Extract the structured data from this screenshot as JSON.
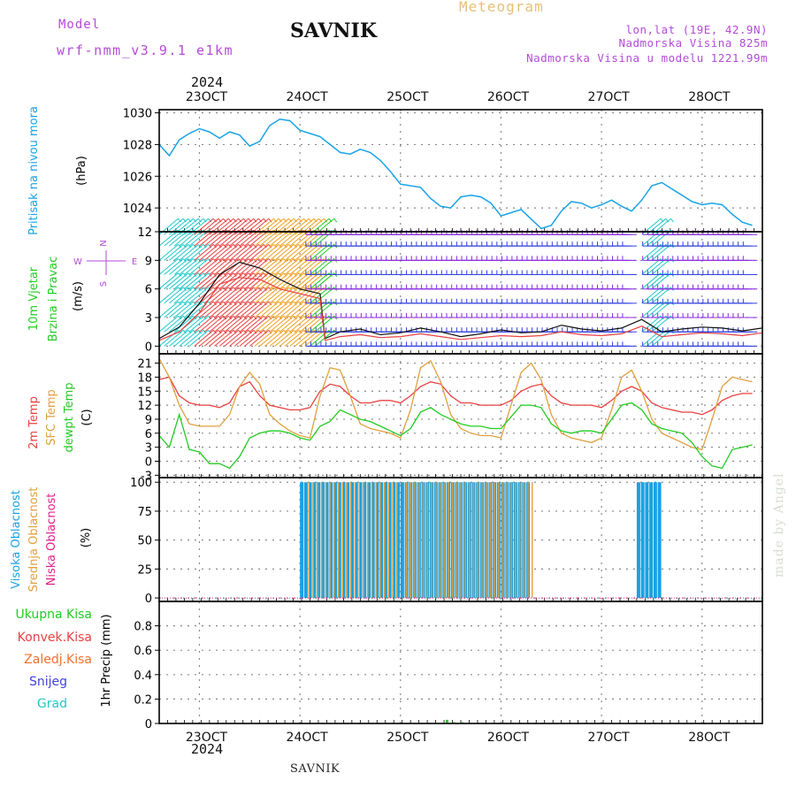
{
  "header": {
    "model_label": "Model",
    "model_name": "wrf-nmm_v3.9.1 e1km",
    "station": "SAVNIK",
    "meteogram_label": "Meteogram",
    "lonlat": "lon,lat (19E, 42.9N)",
    "elevation": "Nadmorska Visina 825m",
    "model_elevation": "Nadmorska Visina u modelu 1221.99m",
    "year": "2024",
    "footer_station": "SAVNIK",
    "credit": "made by Angel"
  },
  "colors": {
    "pressure": "#1aa3e6",
    "temp2m": "#e84040",
    "sfc_temp": "#e0a040",
    "dewpoint": "#22cc22",
    "high_cloud": "#1ba1e2",
    "mid_cloud": "#e0a040",
    "low_cloud": "#e0208a",
    "wind_purple": "#8a2be2",
    "wind_blue": "#2f3fe0",
    "wind_cyan": "#20c8c8",
    "wind_green": "#22cc22",
    "wind_orange": "#f0a020",
    "wind_red": "#e84040",
    "legend_magenta": "#b44bd8",
    "grid": "#8a8a8a"
  },
  "chart_data": [
    {
      "type": "line",
      "title": "",
      "ylabel_left": "Pritisak na nivou mora",
      "ylabel_unit": "(hPa)",
      "xlabel": "",
      "x_ticks": [
        "23OCT",
        "24OCT",
        "25OCT",
        "26OCT",
        "27OCT",
        "28OCT"
      ],
      "x_range_days": [
        22.6,
        28.6
      ],
      "ylim": [
        1022.5,
        1030.2
      ],
      "y_ticks": [
        1024,
        1026,
        1028,
        1030
      ],
      "grid": true,
      "series": [
        {
          "key": "pressure",
          "x": [
            22.6,
            22.7,
            22.8,
            22.9,
            23.0,
            23.1,
            23.2,
            23.3,
            23.4,
            23.5,
            23.6,
            23.7,
            23.8,
            23.9,
            24.0,
            24.1,
            24.2,
            24.3,
            24.4,
            24.5,
            24.6,
            24.7,
            24.8,
            24.9,
            25.0,
            25.1,
            25.2,
            25.3,
            25.4,
            25.5,
            25.6,
            25.7,
            25.8,
            25.9,
            26.0,
            26.1,
            26.2,
            26.3,
            26.4,
            26.5,
            26.6,
            26.7,
            26.8,
            26.9,
            27.0,
            27.1,
            27.2,
            27.3,
            27.4,
            27.5,
            27.6,
            27.7,
            27.8,
            27.9,
            28.0,
            28.1,
            28.2,
            28.3,
            28.4,
            28.5
          ],
          "values": [
            1028.0,
            1027.3,
            1028.3,
            1028.7,
            1029.0,
            1028.8,
            1028.4,
            1028.8,
            1028.6,
            1027.9,
            1028.2,
            1029.2,
            1029.6,
            1029.5,
            1028.9,
            1028.7,
            1028.5,
            1028.0,
            1027.5,
            1027.4,
            1027.7,
            1027.5,
            1027.0,
            1026.3,
            1025.5,
            1025.4,
            1025.3,
            1024.6,
            1024.1,
            1024.0,
            1024.7,
            1024.8,
            1024.7,
            1024.3,
            1023.5,
            1023.7,
            1023.9,
            1023.3,
            1022.7,
            1022.9,
            1023.8,
            1024.4,
            1024.3,
            1024.0,
            1024.2,
            1024.5,
            1024.1,
            1023.8,
            1024.5,
            1025.4,
            1025.6,
            1025.2,
            1024.8,
            1024.4,
            1024.2,
            1024.3,
            1024.2,
            1023.6,
            1023.1,
            1022.9
          ]
        }
      ]
    },
    {
      "type": "line",
      "title": "",
      "ylabel_left": "10m Vjetar Brzina i Pravac",
      "ylabel_unit": "(m/s)",
      "compass_labels": [
        "N",
        "E",
        "S",
        "W"
      ],
      "x_range_days": [
        22.6,
        28.6
      ],
      "ylim": [
        -0.8,
        12
      ],
      "y_ticks": [
        0,
        3,
        6,
        9,
        12
      ],
      "grid": true,
      "wind_barb_rows": [
        0,
        1.5,
        3,
        4.5,
        6,
        7.5,
        9,
        10.5,
        11.7
      ],
      "wind_regimes": [
        {
          "from": 22.6,
          "to": 22.95,
          "color_key": "wind_cyan",
          "direction": "SW"
        },
        {
          "from": 22.95,
          "to": 23.55,
          "color_key": "wind_red",
          "direction": "SW"
        },
        {
          "from": 23.55,
          "to": 24.1,
          "color_key": "wind_orange",
          "direction": "SW"
        },
        {
          "from": 24.1,
          "to": 24.2,
          "color_key": "wind_green",
          "direction": "SW"
        },
        {
          "from": 24.2,
          "to": 27.4,
          "color_key": "wind_purple",
          "direction": "W"
        },
        {
          "from": 27.4,
          "to": 27.55,
          "color_key": "wind_cyan",
          "direction": "SW"
        },
        {
          "from": 27.55,
          "to": 28.6,
          "color_key": "wind_purple",
          "direction": "W"
        }
      ],
      "series": [
        {
          "key": "wind_speed_max",
          "x": [
            22.6,
            22.8,
            23.0,
            23.2,
            23.4,
            23.6,
            23.8,
            24.0,
            24.2,
            24.25,
            24.4,
            24.6,
            24.8,
            25.0,
            25.2,
            25.4,
            25.6,
            25.8,
            26.0,
            26.2,
            26.4,
            26.6,
            26.8,
            27.0,
            27.2,
            27.4,
            27.6,
            27.8,
            28.0,
            28.2,
            28.4,
            28.6
          ],
          "values": [
            0.8,
            2.0,
            4.5,
            7.5,
            8.8,
            8.2,
            7.0,
            6.0,
            5.5,
            0.8,
            1.5,
            1.8,
            1.2,
            1.4,
            1.9,
            1.5,
            1.0,
            1.3,
            1.7,
            1.4,
            1.5,
            2.2,
            1.8,
            1.6,
            1.9,
            2.8,
            1.5,
            1.8,
            2.0,
            1.9,
            1.6,
            1.9
          ]
        },
        {
          "key": "wind_speed_mean",
          "x": [
            22.6,
            22.8,
            23.0,
            23.2,
            23.4,
            23.6,
            23.8,
            24.0,
            24.2,
            24.25,
            24.4,
            24.6,
            24.8,
            25.0,
            25.2,
            25.4,
            25.6,
            25.8,
            26.0,
            26.2,
            26.4,
            26.6,
            26.8,
            27.0,
            27.2,
            27.4,
            27.6,
            27.8,
            28.0,
            28.2,
            28.4,
            28.6
          ],
          "values": [
            0.6,
            1.5,
            3.5,
            6.5,
            7.2,
            7.0,
            6.0,
            5.5,
            5.0,
            0.6,
            1.0,
            1.2,
            0.9,
            1.0,
            1.3,
            1.0,
            0.7,
            0.9,
            1.1,
            1.0,
            1.1,
            1.5,
            1.2,
            1.1,
            1.3,
            2.1,
            1.0,
            1.2,
            1.4,
            1.3,
            1.1,
            1.4
          ]
        }
      ]
    },
    {
      "type": "line",
      "title": "",
      "ylabel_left": [
        "2m Temp",
        "SFC Temp",
        "dewpt Temp"
      ],
      "ylabel_unit": "(C)",
      "x_range_days": [
        22.6,
        28.6
      ],
      "ylim": [
        -3.5,
        23
      ],
      "y_ticks": [
        -3,
        0,
        3,
        6,
        9,
        12,
        15,
        18,
        21
      ],
      "grid": true,
      "series": [
        {
          "key": "temp2m",
          "x": [
            22.6,
            22.7,
            22.8,
            22.9,
            23.0,
            23.1,
            23.2,
            23.3,
            23.4,
            23.5,
            23.6,
            23.7,
            23.8,
            23.9,
            24.0,
            24.1,
            24.2,
            24.3,
            24.4,
            24.5,
            24.6,
            24.7,
            24.8,
            24.9,
            25.0,
            25.1,
            25.2,
            25.3,
            25.4,
            25.5,
            25.6,
            25.7,
            25.8,
            25.9,
            26.0,
            26.1,
            26.2,
            26.3,
            26.4,
            26.5,
            26.6,
            26.7,
            26.8,
            26.9,
            27.0,
            27.1,
            27.2,
            27.3,
            27.4,
            27.5,
            27.6,
            27.7,
            27.8,
            27.9,
            28.0,
            28.1,
            28.2,
            28.3,
            28.4,
            28.5
          ],
          "values": [
            17.5,
            18.0,
            14.0,
            12.5,
            12.0,
            12.0,
            11.5,
            12.5,
            16.0,
            17.0,
            14.0,
            12.0,
            11.5,
            11.0,
            11.0,
            11.5,
            15.0,
            16.5,
            16.0,
            14.0,
            12.5,
            12.5,
            13.0,
            13.0,
            12.5,
            14.0,
            16.0,
            17.0,
            16.5,
            14.0,
            12.5,
            12.5,
            12.0,
            12.0,
            12.0,
            13.0,
            15.0,
            16.0,
            16.5,
            14.0,
            12.5,
            12.0,
            12.0,
            12.0,
            11.5,
            13.0,
            15.0,
            16.0,
            15.0,
            12.5,
            11.5,
            11.0,
            10.5,
            10.5,
            10.0,
            11.0,
            13.0,
            14.0,
            14.5,
            14.5
          ]
        },
        {
          "key": "sfc_temp",
          "x": [
            22.6,
            22.7,
            22.8,
            22.9,
            23.0,
            23.1,
            23.2,
            23.3,
            23.4,
            23.5,
            23.6,
            23.7,
            23.8,
            23.9,
            24.0,
            24.1,
            24.2,
            24.3,
            24.4,
            24.5,
            24.6,
            24.7,
            24.8,
            24.9,
            25.0,
            25.1,
            25.2,
            25.3,
            25.4,
            25.5,
            25.6,
            25.7,
            25.8,
            25.9,
            26.0,
            26.1,
            26.2,
            26.3,
            26.4,
            26.5,
            26.6,
            26.7,
            26.8,
            26.9,
            27.0,
            27.1,
            27.2,
            27.3,
            27.4,
            27.5,
            27.6,
            27.7,
            27.8,
            27.9,
            28.0,
            28.1,
            28.2,
            28.3,
            28.4,
            28.5
          ],
          "values": [
            22.0,
            18.0,
            12.0,
            8.0,
            7.5,
            7.5,
            7.5,
            10.0,
            16.0,
            19.0,
            16.5,
            10.0,
            8.0,
            6.5,
            5.5,
            5.0,
            14.0,
            20.0,
            19.5,
            14.0,
            8.0,
            7.0,
            6.5,
            6.0,
            5.0,
            11.0,
            20.0,
            21.5,
            17.0,
            10.0,
            7.0,
            6.0,
            5.5,
            5.5,
            5.0,
            12.0,
            19.0,
            21.0,
            17.5,
            10.0,
            6.0,
            5.0,
            4.5,
            4.0,
            5.0,
            11.0,
            18.0,
            19.5,
            15.0,
            9.0,
            6.0,
            5.0,
            4.0,
            3.0,
            2.5,
            9.0,
            16.0,
            18.0,
            17.5,
            17.0
          ]
        },
        {
          "key": "dewpoint",
          "x": [
            22.6,
            22.7,
            22.8,
            22.9,
            23.0,
            23.1,
            23.2,
            23.3,
            23.4,
            23.5,
            23.6,
            23.7,
            23.8,
            23.9,
            24.0,
            24.1,
            24.2,
            24.3,
            24.4,
            24.5,
            24.6,
            24.7,
            24.8,
            24.9,
            25.0,
            25.1,
            25.2,
            25.3,
            25.4,
            25.5,
            25.6,
            25.7,
            25.8,
            25.9,
            26.0,
            26.1,
            26.2,
            26.3,
            26.4,
            26.5,
            26.6,
            26.7,
            26.8,
            26.9,
            27.0,
            27.1,
            27.2,
            27.3,
            27.4,
            27.5,
            27.6,
            27.7,
            27.8,
            27.9,
            28.0,
            28.1,
            28.2,
            28.3,
            28.4,
            28.5
          ],
          "values": [
            5.5,
            3.0,
            10.0,
            2.5,
            2.0,
            -0.5,
            -0.5,
            -1.5,
            1.0,
            5.0,
            6.0,
            6.5,
            6.5,
            6.0,
            5.0,
            4.5,
            7.5,
            8.5,
            11.0,
            10.0,
            9.0,
            8.5,
            7.5,
            6.5,
            5.5,
            7.0,
            10.5,
            11.5,
            10.0,
            9.0,
            8.0,
            7.5,
            7.5,
            7.0,
            7.0,
            9.5,
            12.0,
            12.0,
            11.5,
            8.0,
            6.5,
            6.0,
            6.5,
            6.5,
            6.0,
            9.0,
            12.0,
            12.5,
            11.0,
            8.0,
            7.0,
            6.5,
            6.0,
            4.0,
            1.0,
            -1.0,
            -1.5,
            2.5,
            3.0,
            3.5
          ]
        }
      ]
    },
    {
      "type": "bar",
      "title": "",
      "ylabel_left": [
        "Visoka Oblacnost",
        "Srednja Oblacnost",
        "Niska Oblacnost"
      ],
      "ylabel_unit": "(%)",
      "x_range_days": [
        22.6,
        28.6
      ],
      "ylim": [
        -3,
        104
      ],
      "y_ticks": [
        0,
        25,
        50,
        75,
        100
      ],
      "grid": true,
      "bar_step_days": 0.0417,
      "series": [
        {
          "key": "high_cloud",
          "name": "Visoka Oblacnost",
          "segments": [
            {
              "from": 24.0,
              "to": 26.28,
              "value": 100
            },
            {
              "from": 27.35,
              "to": 27.6,
              "value": 100
            }
          ]
        },
        {
          "key": "mid_cloud",
          "name": "Srednja Oblacnost",
          "segments": [
            {
              "from": 24.05,
              "to": 24.95,
              "value": 100
            },
            {
              "from": 25.02,
              "to": 26.3,
              "value": 100
            }
          ]
        },
        {
          "key": "low_cloud",
          "name": "Niska Oblacnost",
          "segments": []
        }
      ]
    },
    {
      "type": "bar",
      "title": "",
      "ylabel_left": [
        "Ukupna Kisa",
        "Konvek.Kisa",
        "Zaledj.Kisa",
        "Snijeg",
        "Grad"
      ],
      "ylabel_unit": "1hr Precip (mm)",
      "legend_colors": [
        "#22cc22",
        "#e84040",
        "#f07030",
        "#4040e0",
        "#20c8c8"
      ],
      "x_ticks": [
        "23OCT",
        "24OCT",
        "25OCT",
        "26OCT",
        "27OCT",
        "28OCT"
      ],
      "x_range_days": [
        22.6,
        28.6
      ],
      "ylim": [
        0,
        1.0
      ],
      "y_ticks": [
        0,
        0.2,
        0.4,
        0.6,
        0.8
      ],
      "grid": true,
      "series": [
        {
          "key": "total_rain",
          "name": "Ukupna Kisa",
          "x": [
            25.45,
            25.52,
            25.6
          ],
          "values": [
            0.03,
            0.01,
            0.01
          ]
        }
      ]
    }
  ]
}
